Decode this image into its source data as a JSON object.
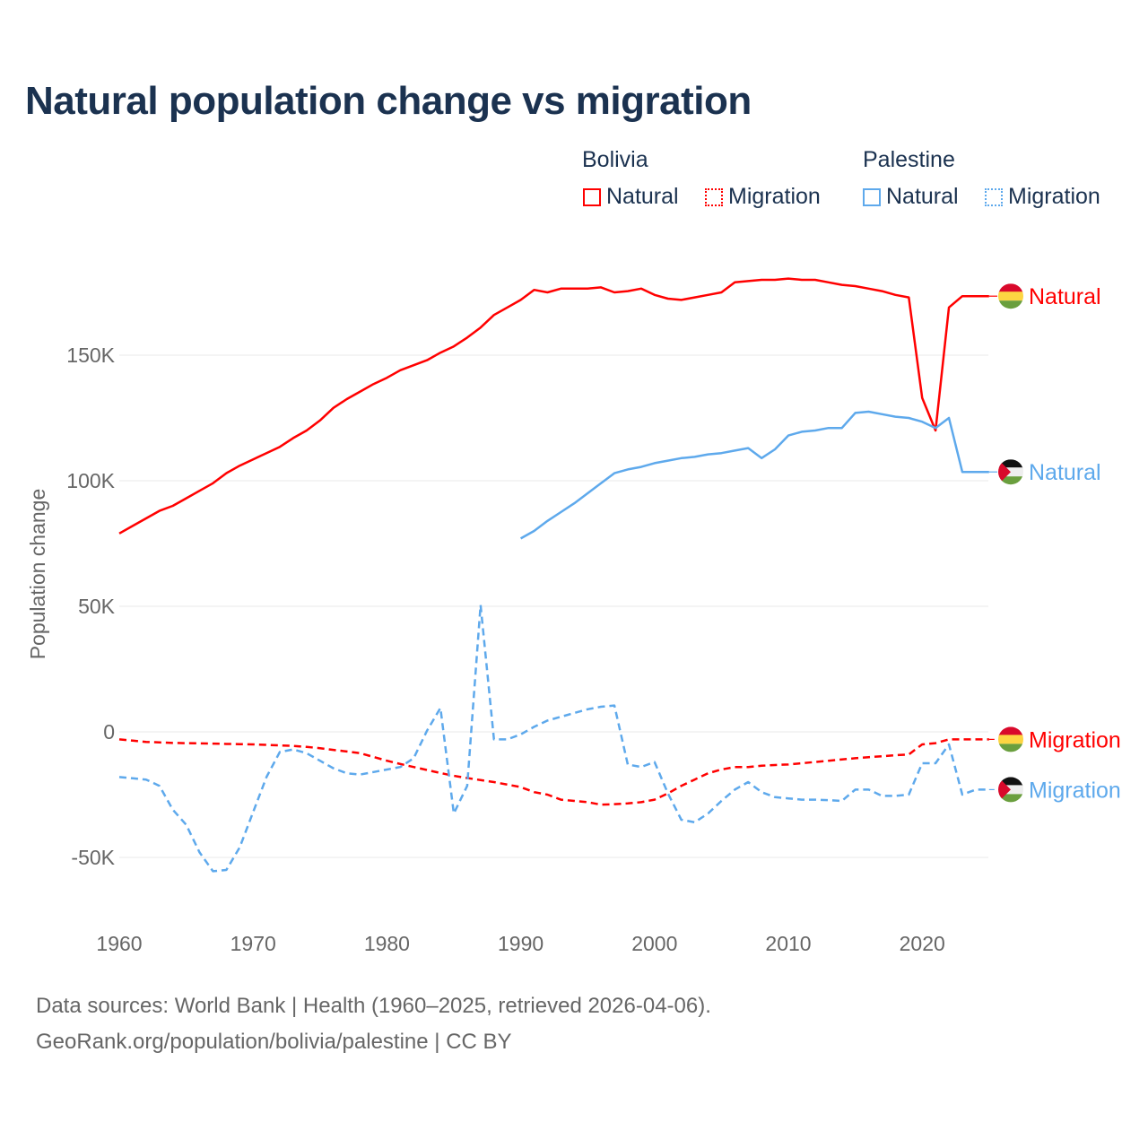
{
  "chart_data": {
    "type": "line",
    "title": "Natural population change vs migration",
    "ylabel": "Population change",
    "xlabel": "",
    "xlim": [
      1960,
      2025
    ],
    "ylim": [
      -70000,
      190000
    ],
    "x_ticks": [
      1960,
      1970,
      1980,
      1990,
      2000,
      2010,
      2020
    ],
    "y_ticks": [
      {
        "v": -50000,
        "label": "-50K"
      },
      {
        "v": 0,
        "label": "0"
      },
      {
        "v": 50000,
        "label": "50K"
      },
      {
        "v": 100000,
        "label": "100K"
      },
      {
        "v": 150000,
        "label": "150K"
      }
    ],
    "grid": true,
    "legend": {
      "placement": "top-right",
      "groups": [
        {
          "name": "Bolivia",
          "items": [
            "Natural",
            "Migration"
          ]
        },
        {
          "name": "Palestine",
          "items": [
            "Natural",
            "Migration"
          ]
        }
      ]
    },
    "series": [
      {
        "name": "Natural",
        "country": "Bolivia",
        "color": "#ff0000",
        "dash": false,
        "start": 1960,
        "values": [
          79,
          82,
          85,
          88,
          90,
          93,
          96,
          99,
          103,
          106,
          108.5,
          111,
          113.5,
          117,
          120,
          124,
          129,
          132.5,
          135.5,
          138.5,
          141,
          144,
          146,
          148,
          151,
          153.5,
          157,
          161,
          166,
          169,
          172,
          176,
          175,
          176.5,
          176.5,
          176.5,
          177,
          175,
          175.5,
          176.5,
          174,
          172.5,
          172,
          173,
          174,
          175,
          179,
          179.5,
          180,
          180,
          180.5,
          180,
          180,
          179,
          178,
          177.5,
          176.5,
          175.5,
          174,
          173,
          133,
          120,
          169,
          173.5,
          173.5,
          173.5
        ]
      },
      {
        "name": "Natural",
        "country": "Palestine",
        "color": "#5ea9ec",
        "dash": false,
        "start": 1990,
        "values": [
          77,
          80,
          84,
          87.5,
          91,
          95,
          99,
          103,
          104.5,
          105.5,
          107,
          108,
          109,
          109.5,
          110.5,
          111,
          112,
          113,
          109,
          112.5,
          118,
          119.5,
          120,
          121,
          121,
          127,
          127.5,
          126.5,
          125.5,
          125,
          123.5,
          121,
          125,
          103.5,
          103.5,
          103.5
        ]
      },
      {
        "name": "Migration",
        "country": "Bolivia",
        "color": "#ff0000",
        "dash": true,
        "start": 1960,
        "values": [
          -3,
          -3.5,
          -4,
          -4.2,
          -4.4,
          -4.5,
          -4.6,
          -4.7,
          -4.8,
          -4.9,
          -5,
          -5.2,
          -5.4,
          -5.6,
          -6,
          -6.5,
          -7.2,
          -7.8,
          -8.5,
          -10,
          -11.5,
          -12.8,
          -14,
          -15.2,
          -16.4,
          -17.5,
          -18.4,
          -19.2,
          -20,
          -21,
          -22,
          -24,
          -25,
          -27,
          -27.5,
          -28,
          -29,
          -28.8,
          -28.5,
          -28,
          -27,
          -24.5,
          -21.5,
          -19,
          -16.5,
          -15,
          -14,
          -14,
          -13.5,
          -13.2,
          -13,
          -12.5,
          -12,
          -11.5,
          -11,
          -10.5,
          -10.1,
          -9.7,
          -9.3,
          -9,
          -5,
          -4.5,
          -3,
          -3,
          -3,
          -3
        ]
      },
      {
        "name": "Migration",
        "country": "Palestine",
        "color": "#5ea9ec",
        "dash": true,
        "start": 1960,
        "values": [
          -18,
          -18.5,
          -19,
          -21.5,
          -31,
          -37,
          -48,
          -55.5,
          -55,
          -46,
          -32,
          -18,
          -8,
          -7,
          -8.5,
          -11.5,
          -14.5,
          -16.5,
          -17,
          -16,
          -15,
          -14,
          -10.5,
          0.5,
          9.5,
          -32.5,
          -21.5,
          50.5,
          -3,
          -3,
          -1,
          2,
          4.5,
          6,
          7.5,
          9,
          10,
          10.5,
          -13,
          -14,
          -12,
          -24.5,
          -35,
          -36,
          -32.5,
          -27.5,
          -23,
          -20,
          -24,
          -26,
          -26.5,
          -27,
          -27,
          -27.2,
          -27.5,
          -23,
          -23,
          -25.5,
          -25.5,
          -25,
          -12.5,
          -12.5,
          -5,
          -25,
          -23,
          -23
        ]
      }
    ],
    "value_unit": "thousands"
  },
  "labels": {
    "bolivia_natural": "Natural",
    "palestine_natural": "Natural",
    "bolivia_migration": "Migration",
    "palestine_migration": "Migration"
  },
  "footer": {
    "line1": "Data sources: World Bank | Health (1960–2025, retrieved 2026-04-06).",
    "line2": "GeoRank.org/population/bolivia/palestine | CC BY"
  }
}
